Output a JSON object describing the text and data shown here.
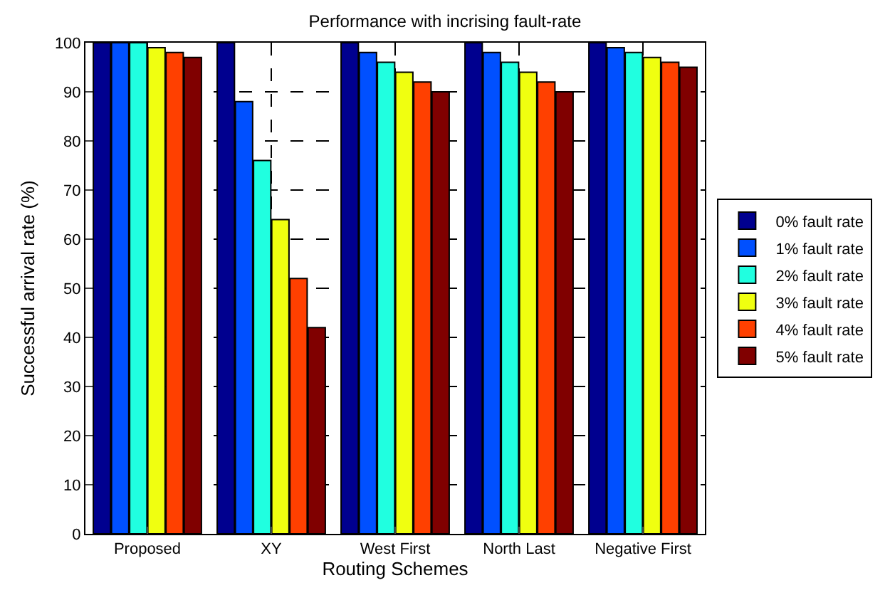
{
  "chart_data": {
    "type": "bar",
    "title": "Performance with incrising fault-rate",
    "xlabel": "Routing Schemes",
    "ylabel": "Successful arrival rate (%)",
    "categories": [
      "Proposed",
      "XY",
      "West First",
      "North Last",
      "Negative First"
    ],
    "series": [
      {
        "name": "0% fault rate",
        "color": "#00008f",
        "values": [
          100,
          100,
          100,
          100,
          100
        ]
      },
      {
        "name": "1% fault rate",
        "color": "#0050ff",
        "values": [
          100,
          88,
          98,
          98,
          99
        ]
      },
      {
        "name": "2% fault rate",
        "color": "#20ffe0",
        "values": [
          100,
          76,
          96,
          96,
          98
        ]
      },
      {
        "name": "3% fault rate",
        "color": "#f0ff10",
        "values": [
          99,
          64,
          94,
          94,
          97
        ]
      },
      {
        "name": "4% fault rate",
        "color": "#ff4000",
        "values": [
          98,
          52,
          92,
          92,
          96
        ]
      },
      {
        "name": "5% fault rate",
        "color": "#800000",
        "values": [
          97,
          42,
          90,
          90,
          95
        ]
      }
    ],
    "ylim": [
      0,
      100
    ],
    "yticks": [
      0,
      10,
      20,
      30,
      40,
      50,
      60,
      70,
      80,
      90,
      100
    ],
    "grid": true,
    "legend": "right"
  }
}
